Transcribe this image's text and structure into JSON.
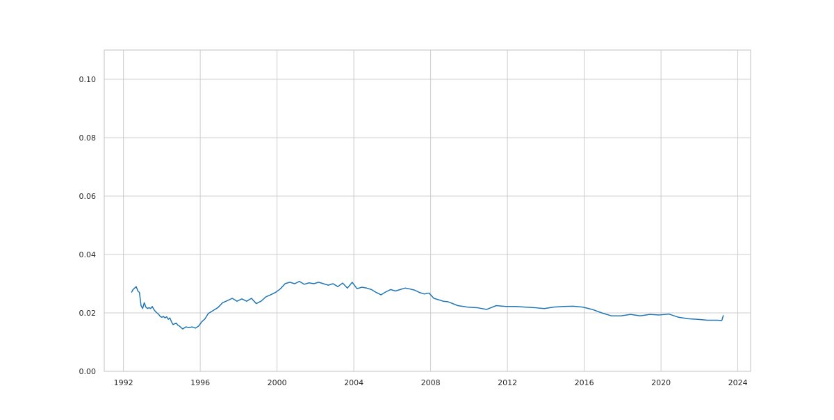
{
  "chart_data": {
    "type": "line",
    "title": "",
    "xlabel": "",
    "ylabel": "",
    "x_type": "date",
    "xlim": [
      "1991-01-01",
      "2024-09-01"
    ],
    "ylim": [
      0,
      0.11
    ],
    "x_ticks": [
      "1992",
      "1996",
      "2000",
      "2004",
      "2008",
      "2012",
      "2016",
      "2020",
      "2024"
    ],
    "y_ticks": [
      "0.00",
      "0.02",
      "0.04",
      "0.06",
      "0.08",
      "0.10"
    ],
    "grid": true,
    "legend": "none",
    "colors": {
      "line": "#1f77b4",
      "grid": "#cccccc",
      "frame": "#cccccc",
      "text": "#262626"
    },
    "series": [
      {
        "x": [
          "1992-06",
          "1992-07",
          "1992-08",
          "1992-09",
          "1992-10",
          "1992-11",
          "1992-12",
          "1993-01",
          "1993-02",
          "1993-03",
          "1993-04",
          "1993-05",
          "1993-06",
          "1993-07",
          "1993-08",
          "1993-09",
          "1993-10",
          "1993-11",
          "1993-12",
          "1994-01",
          "1994-02",
          "1994-03",
          "1994-04",
          "1994-05",
          "1994-06",
          "1994-07",
          "1994-08",
          "1994-09",
          "1994-10",
          "1994-11",
          "1994-12",
          "1995-02",
          "1995-04",
          "1995-06",
          "1995-08",
          "1995-10",
          "1995-12",
          "1996-02",
          "1996-04",
          "1996-06",
          "1996-09",
          "1996-12",
          "1997-03",
          "1997-06",
          "1997-09",
          "1997-12",
          "1998-03",
          "1998-06",
          "1998-09",
          "1998-12",
          "1999-03",
          "1999-06",
          "1999-09",
          "1999-12",
          "2000-03",
          "2000-06",
          "2000-09",
          "2000-12",
          "2001-03",
          "2001-06",
          "2001-09",
          "2001-12",
          "2002-03",
          "2002-06",
          "2002-09",
          "2002-12",
          "2003-03",
          "2003-06",
          "2003-09",
          "2003-12",
          "2004-03",
          "2004-06",
          "2004-09",
          "2004-12",
          "2005-03",
          "2005-06",
          "2005-09",
          "2005-12",
          "2006-03",
          "2006-06",
          "2006-09",
          "2006-12",
          "2007-03",
          "2007-06",
          "2007-09",
          "2007-12",
          "2008-03",
          "2008-06",
          "2008-09",
          "2008-12",
          "2009-06",
          "2009-12",
          "2010-06",
          "2010-12",
          "2011-06",
          "2011-12",
          "2012-06",
          "2012-12",
          "2013-06",
          "2013-12",
          "2014-06",
          "2014-12",
          "2015-06",
          "2015-12",
          "2016-06",
          "2016-12",
          "2017-06",
          "2017-12",
          "2018-06",
          "2018-12",
          "2019-06",
          "2019-12",
          "2020-06",
          "2020-12",
          "2021-06",
          "2021-12",
          "2022-06",
          "2022-12",
          "2023-03",
          "2023-04"
        ],
        "y": [
          0.027,
          0.028,
          0.0285,
          0.029,
          0.0275,
          0.027,
          0.0225,
          0.0215,
          0.0235,
          0.022,
          0.0215,
          0.0218,
          0.0215,
          0.0222,
          0.0212,
          0.0205,
          0.02,
          0.0195,
          0.0188,
          0.0185,
          0.0188,
          0.0183,
          0.0187,
          0.0178,
          0.0183,
          0.017,
          0.016,
          0.0163,
          0.0165,
          0.0158,
          0.0155,
          0.0145,
          0.0152,
          0.015,
          0.0152,
          0.0148,
          0.0155,
          0.017,
          0.018,
          0.0198,
          0.0208,
          0.0218,
          0.0235,
          0.0242,
          0.025,
          0.024,
          0.0248,
          0.024,
          0.025,
          0.0232,
          0.024,
          0.0255,
          0.0262,
          0.027,
          0.0282,
          0.03,
          0.0305,
          0.03,
          0.0308,
          0.0298,
          0.0303,
          0.03,
          0.0305,
          0.03,
          0.0295,
          0.03,
          0.029,
          0.0302,
          0.0285,
          0.0305,
          0.0283,
          0.0288,
          0.0285,
          0.028,
          0.027,
          0.0262,
          0.0272,
          0.028,
          0.0275,
          0.028,
          0.0285,
          0.0282,
          0.0278,
          0.027,
          0.0265,
          0.0268,
          0.025,
          0.0245,
          0.024,
          0.0238,
          0.0225,
          0.022,
          0.0218,
          0.0212,
          0.0225,
          0.0222,
          0.0222,
          0.022,
          0.0218,
          0.0215,
          0.022,
          0.0222,
          0.0223,
          0.022,
          0.0212,
          0.02,
          0.019,
          0.019,
          0.0195,
          0.019,
          0.0195,
          0.0193,
          0.0196,
          0.0185,
          0.018,
          0.0178,
          0.0175,
          0.0175,
          0.0174,
          0.0192
        ]
      }
    ]
  }
}
